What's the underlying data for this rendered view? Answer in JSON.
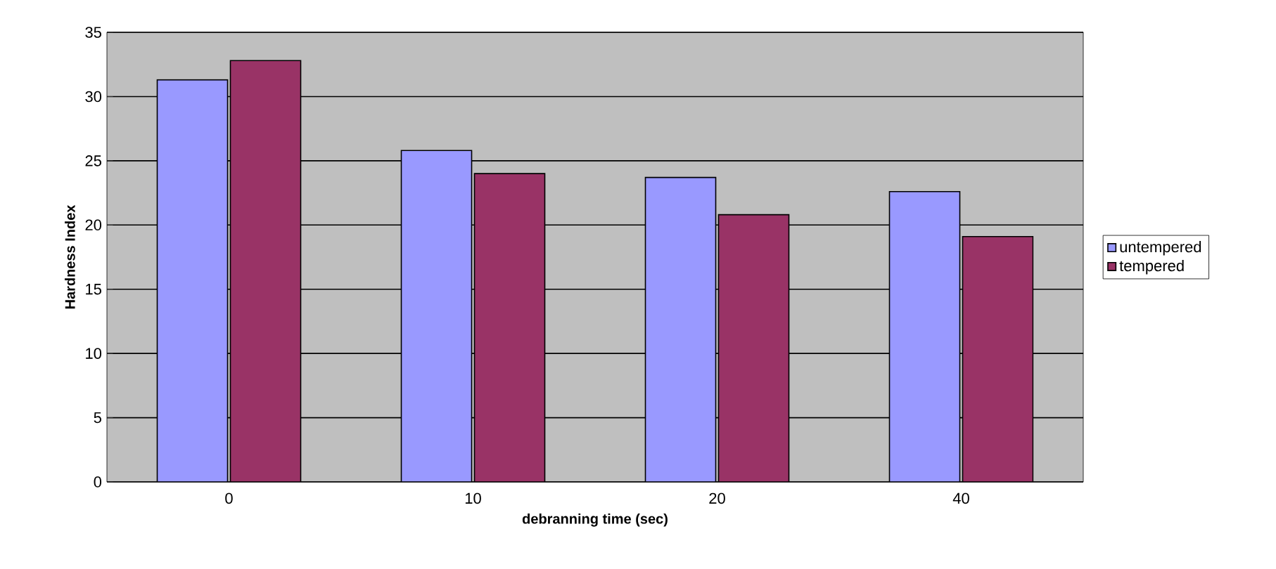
{
  "chart_data": {
    "type": "bar",
    "xlabel": "debranning time (sec)",
    "ylabel": "Hardness Index",
    "categories": [
      "0",
      "10",
      "20",
      "40"
    ],
    "series": [
      {
        "name": "untempered",
        "color": "#9999ff",
        "values": [
          31.3,
          25.8,
          23.7,
          22.6
        ]
      },
      {
        "name": "tempered",
        "color": "#993366",
        "values": [
          32.8,
          24.0,
          20.8,
          19.1
        ]
      }
    ],
    "ylim": [
      0,
      35
    ],
    "yticks": [
      0,
      5,
      10,
      15,
      20,
      25,
      30,
      35
    ],
    "grid": "y",
    "legend": "right"
  }
}
